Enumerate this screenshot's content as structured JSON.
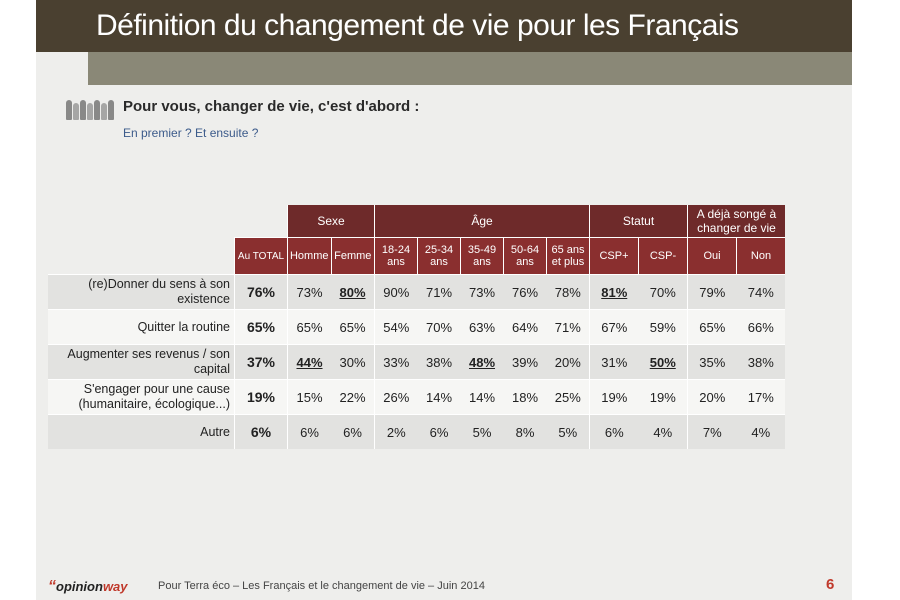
{
  "title": "Définition du changement de vie pour les Français",
  "question": "Pour vous, changer de vie, c'est d'abord :",
  "subquestion": "En premier ? Et ensuite ?",
  "table": {
    "groups": [
      "Sexe",
      "Âge",
      "Statut",
      "A déjà songé à changer de vie"
    ],
    "columns": [
      "Au TOTAL",
      "Homme",
      "Femme",
      "18-24 ans",
      "25-34 ans",
      "35-49 ans",
      "50-64 ans",
      "65 ans et plus",
      "CSP+",
      "CSP-",
      "Oui",
      "Non"
    ],
    "rows": [
      {
        "label": "(re)Donner du sens à son existence",
        "values": [
          "76%",
          "73%",
          "80%",
          "90%",
          "71%",
          "73%",
          "76%",
          "78%",
          "81%",
          "70%",
          "79%",
          "74%"
        ]
      },
      {
        "label": "Quitter la routine",
        "values": [
          "65%",
          "65%",
          "65%",
          "54%",
          "70%",
          "63%",
          "64%",
          "71%",
          "67%",
          "59%",
          "65%",
          "66%"
        ]
      },
      {
        "label": "Augmenter ses revenus / son capital",
        "values": [
          "37%",
          "44%",
          "30%",
          "33%",
          "38%",
          "48%",
          "39%",
          "20%",
          "31%",
          "50%",
          "35%",
          "38%"
        ]
      },
      {
        "label": "S'engager pour une cause (humanitaire, écologique...)",
        "values": [
          "19%",
          "15%",
          "22%",
          "26%",
          "14%",
          "14%",
          "18%",
          "25%",
          "19%",
          "19%",
          "20%",
          "17%"
        ]
      },
      {
        "label": "Autre",
        "values": [
          "6%",
          "6%",
          "6%",
          "2%",
          "6%",
          "5%",
          "8%",
          "5%",
          "6%",
          "4%",
          "7%",
          "4%"
        ]
      }
    ]
  },
  "footer": {
    "logo_quote": "“",
    "logo_opinion": "opinion",
    "logo_way": "way",
    "text": "Pour Terra éco – Les Français et le changement de vie – Juin 2014",
    "page": "6"
  },
  "colors": {
    "title_bar": "#4a4030",
    "header": "#8a2f2f",
    "accent": "#c0392b"
  }
}
